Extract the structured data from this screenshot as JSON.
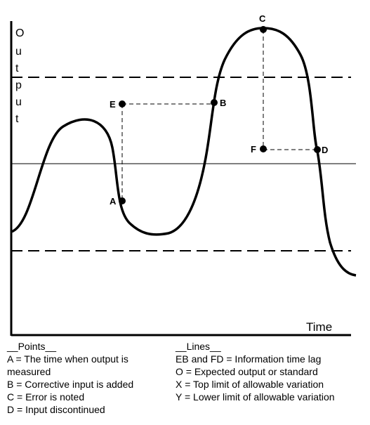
{
  "axis": {
    "y_label": "Output",
    "x_label": "Time"
  },
  "points": [
    {
      "id": "A",
      "label": "A"
    },
    {
      "id": "B",
      "label": "B"
    },
    {
      "id": "C",
      "label": "C"
    },
    {
      "id": "D",
      "label": "D"
    },
    {
      "id": "E",
      "label": "E"
    },
    {
      "id": "F",
      "label": "F"
    }
  ],
  "legend": {
    "points_title": "__Points__",
    "points_items": [
      "A = The time when output is measured",
      "B = Corrective input is added",
      "C = Error is noted",
      "D = Input discontinued"
    ],
    "lines_title": "__Lines__",
    "lines_items": [
      "EB and FD = Information time lag",
      "O = Expected output or standard",
      "X = Top limit of allowable variation",
      "Y = Lower limit of allowable variation"
    ]
  }
}
